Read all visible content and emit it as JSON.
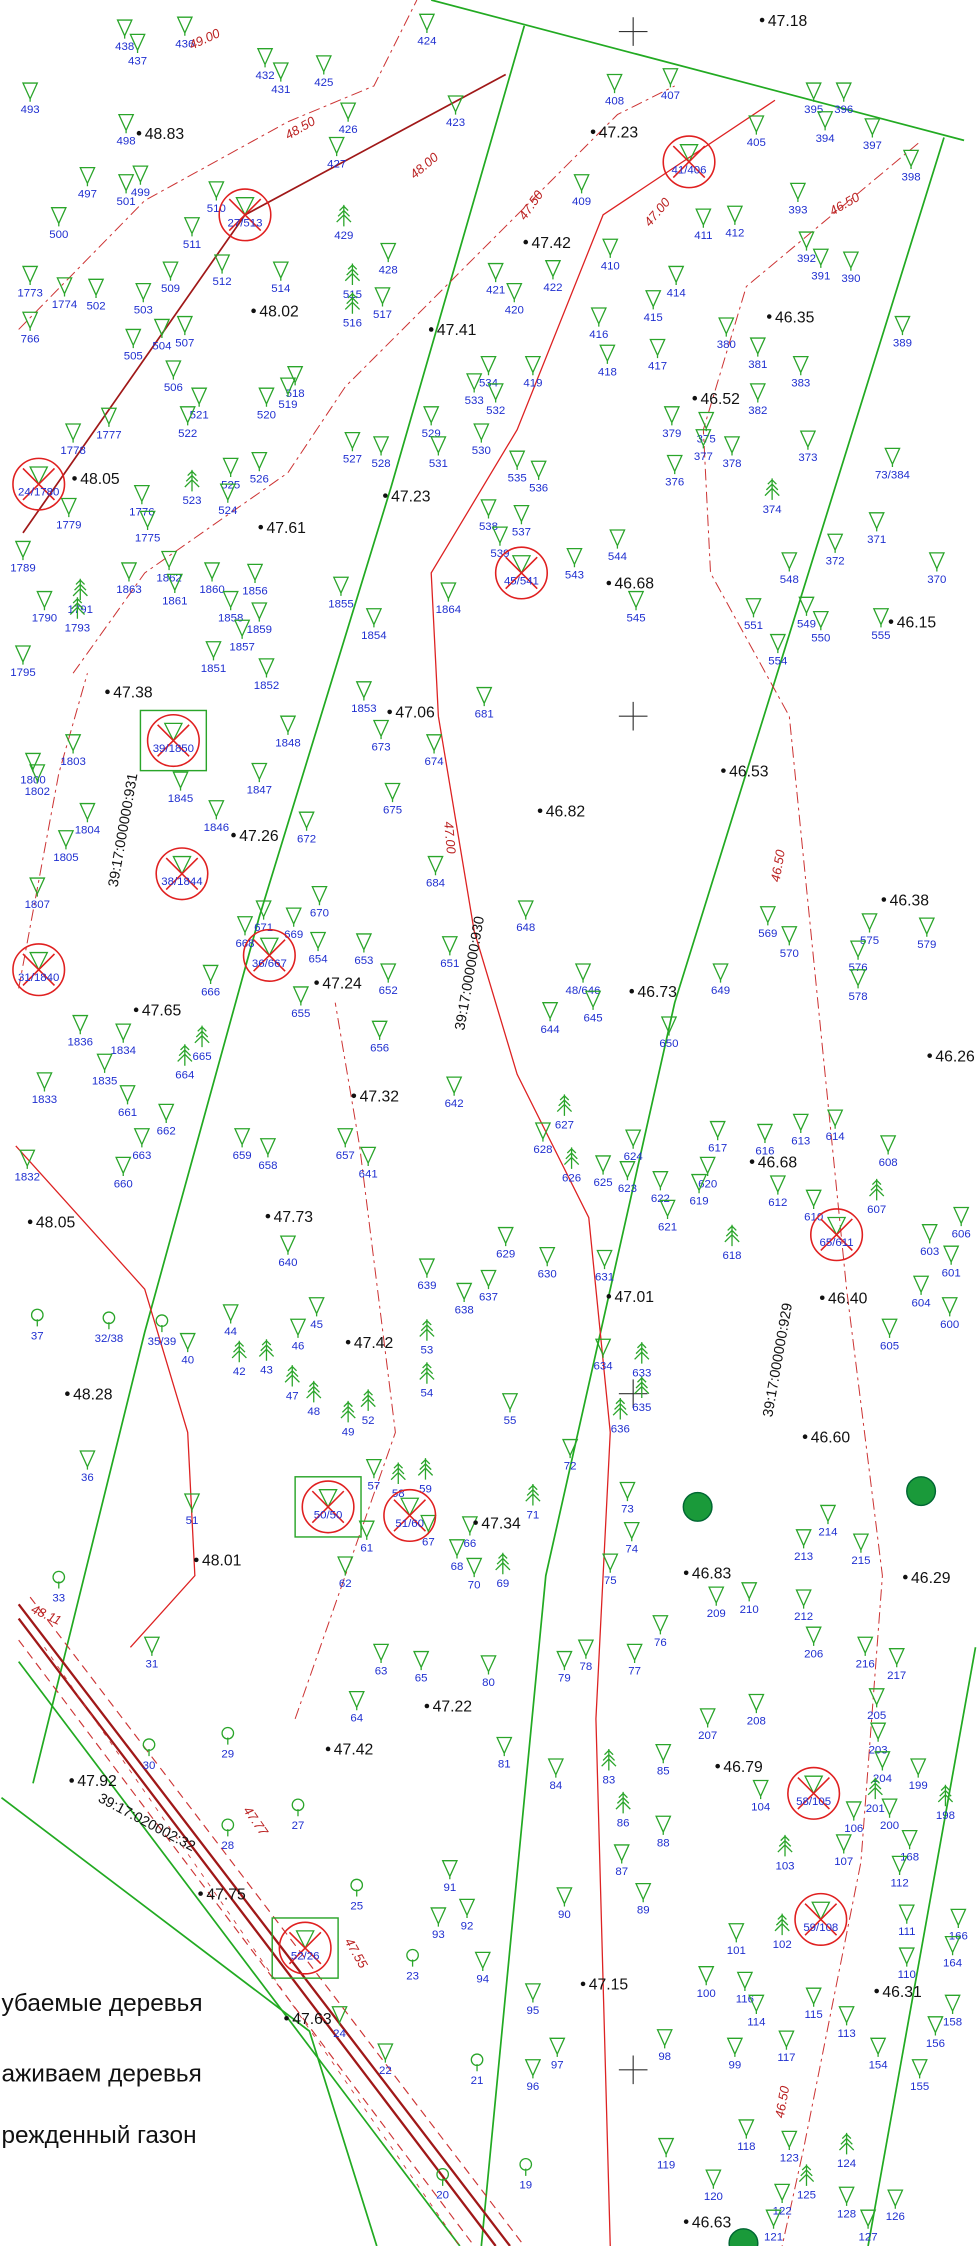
{
  "spot_heights": [
    "47.18",
    "48.83",
    "47.23",
    "47.42",
    "48.02",
    "46.35",
    "47.41",
    "46.52",
    "48.05",
    "47.61",
    "47.23",
    "46.68",
    "46.15",
    "47.38",
    "47.06",
    "46.53",
    "46.82",
    "47.26",
    "46.38",
    "47.24",
    "47.65",
    "46.73",
    "46.26",
    "47.32",
    "46.68",
    "48.05",
    "47.73",
    "47.01",
    "46.40",
    "47.42",
    "48.28",
    "46.60",
    "47.34",
    "48.01",
    "46.83",
    "46.29",
    "47.22",
    "47.42",
    "46.79",
    "47.92",
    "47.75",
    "47.15",
    "46.31",
    "47.63",
    "46.63"
  ],
  "contour_labels": [
    "49.00",
    "48.50",
    "48.00",
    "47.50",
    "47.00",
    "46.50",
    "47.00",
    "46.50",
    "46.50",
    "48.11",
    "47.77",
    "47.55"
  ],
  "parcel_labels": [
    "39:17:000000:931",
    "39:17:000000:930",
    "39:17:000000:929",
    "39:17:020002:32"
  ],
  "deciduous_trees": [
    "436",
    "438",
    "437",
    "424",
    "432",
    "431",
    "425",
    "493",
    "498",
    "423",
    "408",
    "407",
    "395",
    "396",
    "394",
    "397",
    "405",
    "426",
    "427",
    "398",
    "497",
    "501",
    "499",
    "510",
    "409",
    "500",
    "411",
    "412",
    "393",
    "511",
    "392",
    "391",
    "390",
    "428",
    "410",
    "414",
    "421",
    "420",
    "422",
    "1773",
    "1774",
    "502",
    "503",
    "509",
    "512",
    "514",
    "517",
    "415",
    "389",
    "766",
    "504",
    "505",
    "507",
    "506",
    "380",
    "416",
    "418",
    "417",
    "381",
    "518",
    "519",
    "520",
    "521",
    "522",
    "534",
    "533",
    "532",
    "419",
    "383",
    "382",
    "529",
    "531",
    "530",
    "379",
    "375",
    "377",
    "378",
    "373",
    "1778",
    "1777",
    "527",
    "528",
    "376",
    "525",
    "526",
    "535",
    "536",
    "73/384",
    "1776",
    "1775",
    "1779",
    "524",
    "537",
    "538",
    "371",
    "544",
    "372",
    "539",
    "1863",
    "1862",
    "1861",
    "1860",
    "1856",
    "543",
    "548",
    "370",
    "1855",
    "1864",
    "1789",
    "545",
    "551",
    "549",
    "550",
    "555",
    "1790",
    "1858",
    "1859",
    "1854",
    "1857",
    "1851",
    "554",
    "1795",
    "1852",
    "1853",
    "681",
    "673",
    "674",
    "1848",
    "1803",
    "1800",
    "1802",
    "1845",
    "1847",
    "1804",
    "1846",
    "672",
    "675",
    "1805",
    "684",
    "569",
    "570",
    "575",
    "579",
    "576",
    "578",
    "1807",
    "648",
    "670",
    "669",
    "671",
    "668",
    "654",
    "653",
    "652",
    "651",
    "666",
    "655",
    "649",
    "48/646",
    "645",
    "644",
    "650",
    "1836",
    "1834",
    "1835",
    "656",
    "1833",
    "661",
    "662",
    "642",
    "628",
    "617",
    "616",
    "613",
    "614",
    "659",
    "658",
    "657",
    "641",
    "1832",
    "663",
    "660",
    "608",
    "624",
    "623",
    "625",
    "620",
    "619",
    "622",
    "621",
    "612",
    "610",
    "605",
    "606",
    "603",
    "601",
    "604",
    "600",
    "640",
    "629",
    "630",
    "631",
    "639",
    "637",
    "638",
    "44",
    "45",
    "46",
    "55",
    "634",
    "72",
    "36",
    "57",
    "73",
    "214",
    "213",
    "215",
    "51",
    "61",
    "62",
    "68",
    "66",
    "67",
    "70",
    "74",
    "75",
    "209",
    "210",
    "212",
    "206",
    "216",
    "217",
    "76",
    "77",
    "78",
    "79",
    "31",
    "63",
    "65",
    "80",
    "205",
    "208",
    "207",
    "64",
    "81",
    "84",
    "85",
    "203",
    "204",
    "199",
    "200",
    "104",
    "88",
    "106",
    "168",
    "107",
    "112",
    "87",
    "91",
    "89",
    "90",
    "92",
    "93",
    "111",
    "166",
    "101",
    "164",
    "110",
    "94",
    "116",
    "100",
    "114",
    "115",
    "113",
    "95",
    "158",
    "156",
    "117",
    "24",
    "22",
    "97",
    "96",
    "98",
    "99",
    "154",
    "155",
    "118",
    "123",
    "119",
    "120",
    "122",
    "128",
    "126",
    "127",
    "121",
    "40"
  ],
  "conifer_trees": [
    "429",
    "515",
    "516",
    "523",
    "374",
    "1791",
    "1793",
    "665",
    "664",
    "627",
    "626",
    "607",
    "618",
    "42",
    "43",
    "47",
    "48",
    "49",
    "52",
    "53",
    "54",
    "59",
    "58",
    "71",
    "69",
    "633",
    "635",
    "636",
    "86",
    "83",
    "103",
    "102",
    "201",
    "198",
    "124",
    "125"
  ],
  "round_trees": [
    "37",
    "32/38",
    "35/39",
    "33",
    "29",
    "30",
    "27",
    "28",
    "25",
    "23",
    "21",
    "19",
    "20"
  ],
  "removed_trees": [
    "27/513",
    "41/406",
    "24/1780",
    "45/541",
    "39/1850",
    "38/1844",
    "36/667",
    "31/1840",
    "50/50",
    "51/60",
    "65/611",
    "58/105",
    "59/108",
    "52/26"
  ],
  "legend": [
    "убаемые деревья",
    "аживаем деревья",
    "режденный газон"
  ]
}
